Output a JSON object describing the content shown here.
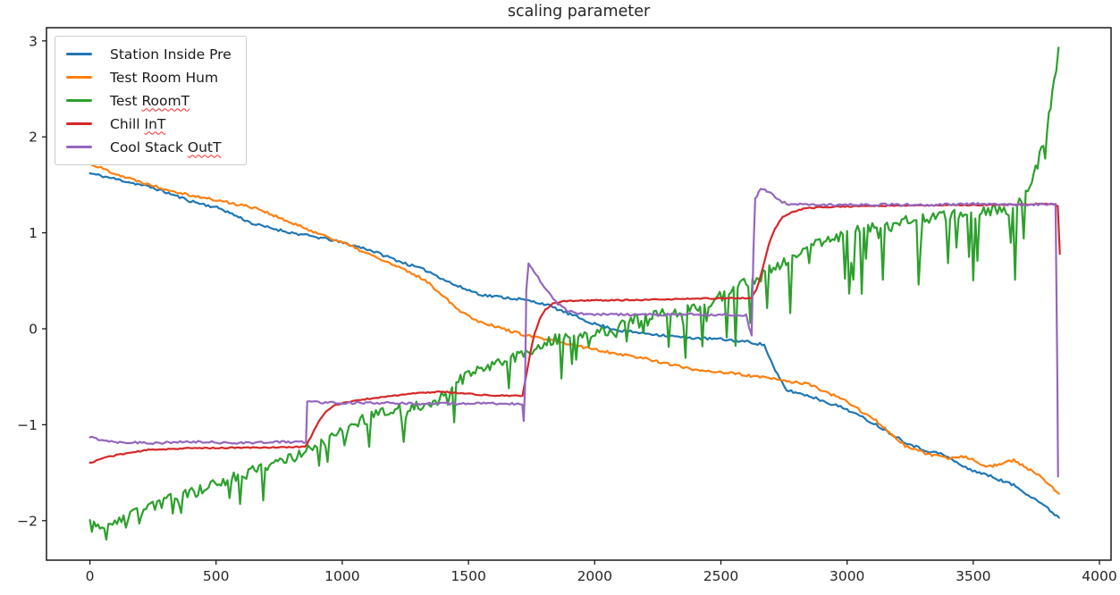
{
  "figure": {
    "title": "scaling parameter",
    "background": "#ffffff"
  },
  "chart_data": {
    "type": "line",
    "title": "scaling parameter",
    "xlabel": "",
    "ylabel": "",
    "grid": false,
    "legend_position": "upper left",
    "axis": {
      "xlim": [
        -172,
        4046
      ],
      "ylim": [
        -2.412,
        3.138
      ],
      "x_ticks": [
        0,
        500,
        1000,
        1500,
        2000,
        2500,
        3000,
        3500,
        4000
      ],
      "y_ticks": [
        3,
        2,
        1,
        0,
        -1,
        -2
      ],
      "spine_color": "#1a1a1a",
      "tick_label_color": "#262626",
      "tick_font_size": 15.5
    },
    "series": [
      {
        "name": "Station Inside Pre",
        "label_plain": "Station Inside Pre",
        "label_squiggle": "",
        "color": "#1f77b4",
        "noise": 0.014,
        "spike_prob": 0,
        "spike_max": 0,
        "seed": 11,
        "points": [
          [
            0,
            1.62
          ],
          [
            120,
            1.55
          ],
          [
            250,
            1.47
          ],
          [
            400,
            1.33
          ],
          [
            520,
            1.25
          ],
          [
            650,
            1.09
          ],
          [
            800,
            1.0
          ],
          [
            950,
            0.93
          ],
          [
            1100,
            0.83
          ],
          [
            1250,
            0.68
          ],
          [
            1340,
            0.6
          ],
          [
            1450,
            0.45
          ],
          [
            1558,
            0.35
          ],
          [
            1700,
            0.31
          ],
          [
            1800,
            0.26
          ],
          [
            1912,
            0.14
          ],
          [
            2000,
            0.05
          ],
          [
            2100,
            -0.02
          ],
          [
            2210,
            -0.05
          ],
          [
            2350,
            -0.09
          ],
          [
            2500,
            -0.11
          ],
          [
            2620,
            -0.14
          ],
          [
            2672,
            -0.17
          ],
          [
            2715,
            -0.44
          ],
          [
            2760,
            -0.64
          ],
          [
            2850,
            -0.7
          ],
          [
            3000,
            -0.84
          ],
          [
            3115,
            -1.0
          ],
          [
            3230,
            -1.18
          ],
          [
            3300,
            -1.26
          ],
          [
            3380,
            -1.31
          ],
          [
            3470,
            -1.45
          ],
          [
            3560,
            -1.53
          ],
          [
            3660,
            -1.63
          ],
          [
            3760,
            -1.8
          ],
          [
            3840,
            -1.97
          ]
        ]
      },
      {
        "name": "Test Room Hum",
        "label_plain": "Test Room Hum",
        "label_squiggle": "",
        "color": "#ff7f0e",
        "noise": 0.014,
        "spike_prob": 0,
        "spike_max": 0,
        "seed": 22,
        "points": [
          [
            0,
            1.72
          ],
          [
            140,
            1.58
          ],
          [
            280,
            1.47
          ],
          [
            420,
            1.38
          ],
          [
            560,
            1.31
          ],
          [
            660,
            1.26
          ],
          [
            780,
            1.12
          ],
          [
            920,
            0.98
          ],
          [
            1000,
            0.9
          ],
          [
            1120,
            0.76
          ],
          [
            1240,
            0.62
          ],
          [
            1320,
            0.52
          ],
          [
            1390,
            0.37
          ],
          [
            1460,
            0.2
          ],
          [
            1530,
            0.09
          ],
          [
            1600,
            0.03
          ],
          [
            1700,
            -0.05
          ],
          [
            1800,
            -0.11
          ],
          [
            1912,
            -0.17
          ],
          [
            2050,
            -0.24
          ],
          [
            2200,
            -0.31
          ],
          [
            2380,
            -0.42
          ],
          [
            2530,
            -0.46
          ],
          [
            2700,
            -0.52
          ],
          [
            2850,
            -0.58
          ],
          [
            3000,
            -0.76
          ],
          [
            3115,
            -0.96
          ],
          [
            3230,
            -1.22
          ],
          [
            3310,
            -1.3
          ],
          [
            3390,
            -1.35
          ],
          [
            3470,
            -1.33
          ],
          [
            3560,
            -1.44
          ],
          [
            3660,
            -1.37
          ],
          [
            3760,
            -1.53
          ],
          [
            3840,
            -1.72
          ]
        ]
      },
      {
        "name": "Test RoomT",
        "label_plain": "Test ",
        "label_squiggle": "RoomT",
        "color": "#2ca02c",
        "noise": 0.06,
        "spike_prob": 0.14,
        "spike_max": 0.8,
        "seed": 33,
        "points": [
          [
            0,
            -2.0
          ],
          [
            40,
            -2.12
          ],
          [
            90,
            -2.05
          ],
          [
            160,
            -1.95
          ],
          [
            240,
            -1.85
          ],
          [
            320,
            -1.78
          ],
          [
            420,
            -1.7
          ],
          [
            520,
            -1.6
          ],
          [
            620,
            -1.48
          ],
          [
            720,
            -1.4
          ],
          [
            820,
            -1.33
          ],
          [
            900,
            -1.22
          ],
          [
            1000,
            -1.08
          ],
          [
            1080,
            -0.95
          ],
          [
            1160,
            -0.88
          ],
          [
            1260,
            -0.82
          ],
          [
            1360,
            -0.78
          ],
          [
            1460,
            -0.55
          ],
          [
            1560,
            -0.42
          ],
          [
            1660,
            -0.32
          ],
          [
            1760,
            -0.2
          ],
          [
            1860,
            -0.1
          ],
          [
            1960,
            -0.08
          ],
          [
            2060,
            -0.02
          ],
          [
            2160,
            0.1
          ],
          [
            2260,
            0.17
          ],
          [
            2360,
            0.22
          ],
          [
            2460,
            0.28
          ],
          [
            2550,
            0.4
          ],
          [
            2650,
            0.55
          ],
          [
            2750,
            0.7
          ],
          [
            2850,
            0.85
          ],
          [
            2950,
            0.95
          ],
          [
            3050,
            1.03
          ],
          [
            3150,
            1.08
          ],
          [
            3250,
            1.13
          ],
          [
            3350,
            1.17
          ],
          [
            3450,
            1.19
          ],
          [
            3550,
            1.22
          ],
          [
            3640,
            1.26
          ],
          [
            3700,
            1.38
          ],
          [
            3740,
            1.6
          ],
          [
            3770,
            1.85
          ],
          [
            3800,
            2.2
          ],
          [
            3820,
            2.55
          ],
          [
            3838,
            2.93
          ]
        ]
      },
      {
        "name": "Chill InT",
        "label_plain": "Chill ",
        "label_squiggle": "InT",
        "color": "#d62728",
        "noise": 0.006,
        "spike_prob": 0,
        "spike_max": 0,
        "seed": 44,
        "points": [
          [
            0,
            -1.4
          ],
          [
            60,
            -1.34
          ],
          [
            140,
            -1.3
          ],
          [
            240,
            -1.26
          ],
          [
            400,
            -1.245
          ],
          [
            600,
            -1.24
          ],
          [
            780,
            -1.235
          ],
          [
            853,
            -1.23
          ],
          [
            875,
            -1.13
          ],
          [
            905,
            -0.97
          ],
          [
            935,
            -0.86
          ],
          [
            970,
            -0.8
          ],
          [
            1010,
            -0.77
          ],
          [
            1090,
            -0.735
          ],
          [
            1180,
            -0.705
          ],
          [
            1280,
            -0.675
          ],
          [
            1390,
            -0.655
          ],
          [
            1490,
            -0.675
          ],
          [
            1580,
            -0.695
          ],
          [
            1714,
            -0.7
          ],
          [
            1728,
            -0.5
          ],
          [
            1745,
            -0.25
          ],
          [
            1762,
            -0.05
          ],
          [
            1782,
            0.1
          ],
          [
            1805,
            0.2
          ],
          [
            1835,
            0.265
          ],
          [
            1880,
            0.29
          ],
          [
            1980,
            0.295
          ],
          [
            2200,
            0.3
          ],
          [
            2420,
            0.315
          ],
          [
            2620,
            0.32
          ],
          [
            2640,
            0.4
          ],
          [
            2665,
            0.62
          ],
          [
            2690,
            0.88
          ],
          [
            2715,
            1.05
          ],
          [
            2745,
            1.16
          ],
          [
            2785,
            1.22
          ],
          [
            2835,
            1.255
          ],
          [
            2920,
            1.27
          ],
          [
            3100,
            1.28
          ],
          [
            3300,
            1.285
          ],
          [
            3500,
            1.29
          ],
          [
            3700,
            1.295
          ],
          [
            3815,
            1.3
          ],
          [
            3835,
            1.28
          ],
          [
            3843,
            0.78
          ]
        ]
      },
      {
        "name": "Cool Stack OutT",
        "label_plain": "Cool Stack ",
        "label_squiggle": "OutT",
        "color": "#9467bd",
        "noise": 0.012,
        "spike_prob": 0,
        "spike_max": 0,
        "seed": 55,
        "points": [
          [
            0,
            -1.13
          ],
          [
            50,
            -1.16
          ],
          [
            110,
            -1.18
          ],
          [
            250,
            -1.19
          ],
          [
            420,
            -1.18
          ],
          [
            600,
            -1.19
          ],
          [
            760,
            -1.18
          ],
          [
            856,
            -1.18
          ],
          [
            861,
            -0.76
          ],
          [
            960,
            -0.77
          ],
          [
            1120,
            -0.775
          ],
          [
            1300,
            -0.78
          ],
          [
            1480,
            -0.78
          ],
          [
            1640,
            -0.78
          ],
          [
            1713,
            -0.78
          ],
          [
            1719,
            -0.97
          ],
          [
            1724,
            -0.6
          ],
          [
            1729,
            0.4
          ],
          [
            1738,
            0.69
          ],
          [
            1760,
            0.6
          ],
          [
            1800,
            0.44
          ],
          [
            1845,
            0.28
          ],
          [
            1890,
            0.19
          ],
          [
            1940,
            0.155
          ],
          [
            2060,
            0.15
          ],
          [
            2200,
            0.145
          ],
          [
            2350,
            0.15
          ],
          [
            2480,
            0.145
          ],
          [
            2600,
            0.14
          ],
          [
            2612,
            0.02
          ],
          [
            2622,
            -0.07
          ],
          [
            2629,
            0.8
          ],
          [
            2636,
            1.35
          ],
          [
            2658,
            1.47
          ],
          [
            2690,
            1.43
          ],
          [
            2725,
            1.34
          ],
          [
            2770,
            1.3
          ],
          [
            2900,
            1.29
          ],
          [
            3100,
            1.295
          ],
          [
            3300,
            1.29
          ],
          [
            3500,
            1.3
          ],
          [
            3680,
            1.295
          ],
          [
            3800,
            1.3
          ],
          [
            3826,
            1.29
          ],
          [
            3833,
            -0.5
          ],
          [
            3836,
            -1.54
          ]
        ]
      }
    ]
  }
}
